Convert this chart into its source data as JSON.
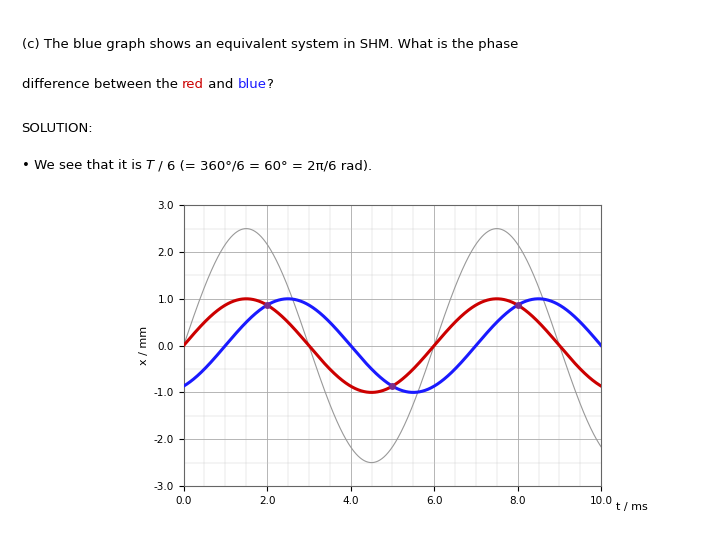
{
  "title_line1": "(c) The blue graph shows an equivalent system in SHM. What is the phase",
  "title_line2_pre": "difference between the ",
  "title_line2_red": "red",
  "title_line2_mid": " and ",
  "title_line2_blue": "blue",
  "title_line2_end": "?",
  "solution_label": "SOLUTION:",
  "bullet_pre": "• We see that it is ",
  "bullet_italic": "T",
  "bullet_rest": " / 6 (= 360°/6 = 60° = 2π/6 rad).",
  "xlabel": "t / ms",
  "ylabel": "x / mm",
  "xlim": [
    0.0,
    10.0
  ],
  "ylim": [
    -3.0,
    3.0
  ],
  "xticks": [
    0.0,
    2.0,
    4.0,
    6.0,
    8.0,
    10.0
  ],
  "yticks": [
    -3.0,
    -2.0,
    -1.0,
    0.0,
    1.0,
    2.0,
    3.0
  ],
  "period": 6.0,
  "amplitude_gray": 2.5,
  "amplitude_red": 1.0,
  "amplitude_blue": 1.0,
  "gray_color": "#999999",
  "red_color": "#cc0000",
  "blue_color": "#1a1aff",
  "purple_color": "#7b2d8b",
  "grid_major_color": "#aaaaaa",
  "grid_minor_color": "#cccccc",
  "background_color": "#ffffff",
  "fig_width": 7.2,
  "fig_height": 5.4,
  "dpi": 100,
  "text_fontsize": 9.5,
  "tick_fontsize": 7.5,
  "axis_label_fontsize": 8
}
